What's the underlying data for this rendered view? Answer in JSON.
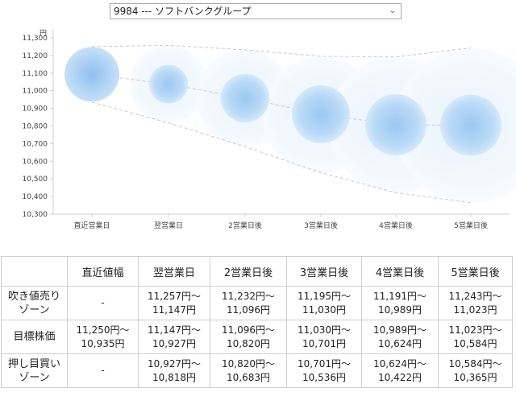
{
  "selector": {
    "value": "9984 --- ソフトバンクグループ"
  },
  "chart_data": {
    "type": "scatter",
    "unit_label": "円",
    "ylim": [
      10300,
      11350
    ],
    "yticks": [
      "10,300",
      "10,400",
      "10,500",
      "10,600",
      "10,700",
      "10,800",
      "10,900",
      "11,000",
      "11,100",
      "11,200",
      "11,300"
    ],
    "ytick_values": [
      10300,
      10400,
      10500,
      10600,
      10700,
      10800,
      10900,
      11000,
      11100,
      11200,
      11300
    ],
    "categories": [
      "直近営業日",
      "翌営業日",
      "2営業日後",
      "3営業日後",
      "4営業日後",
      "5営業日後"
    ],
    "centers": [
      11093,
      11037,
      10958,
      10866,
      10807,
      10804
    ],
    "upper_band": [
      11250,
      11257,
      11232,
      11195,
      11191,
      11243
    ],
    "lower_band": [
      10935,
      10818,
      10683,
      10536,
      10422,
      10365
    ],
    "inner_upper": [
      11250,
      11147,
      11096,
      11030,
      10989,
      11023
    ],
    "inner_lower": [
      10935,
      10927,
      10820,
      10701,
      10624,
      10584
    ]
  },
  "table": {
    "headers": [
      "",
      "直近値幅",
      "翌営業日",
      "2営業日後",
      "3営業日後",
      "4営業日後",
      "5営業日後"
    ],
    "rows": [
      {
        "label_1": "吹き値売り",
        "label_2": "ゾーン",
        "cells": [
          {
            "a": "-",
            "b": ""
          },
          {
            "a": "11,257円〜",
            "b": "11,147円"
          },
          {
            "a": "11,232円〜",
            "b": "11,096円"
          },
          {
            "a": "11,195円〜",
            "b": "11,030円"
          },
          {
            "a": "11,191円〜",
            "b": "10,989円"
          },
          {
            "a": "11,243円〜",
            "b": "11,023円"
          }
        ]
      },
      {
        "label_1": "目標株価",
        "label_2": "",
        "cells": [
          {
            "a": "11,250円〜",
            "b": "10,935円"
          },
          {
            "a": "11,147円〜",
            "b": "10,927円"
          },
          {
            "a": "11,096円〜",
            "b": "10,820円"
          },
          {
            "a": "11,030円〜",
            "b": "10,701円"
          },
          {
            "a": "10,989円〜",
            "b": "10,624円"
          },
          {
            "a": "11,023円〜",
            "b": "10,584円"
          }
        ]
      },
      {
        "label_1": "押し目買い",
        "label_2": "ゾーン",
        "cells": [
          {
            "a": "-",
            "b": ""
          },
          {
            "a": "10,927円〜",
            "b": "10,818円"
          },
          {
            "a": "10,820円〜",
            "b": "10,683円"
          },
          {
            "a": "10,701円〜",
            "b": "10,536円"
          },
          {
            "a": "10,624円〜",
            "b": "10,422円"
          },
          {
            "a": "10,584円〜",
            "b": "10,365円"
          }
        ]
      }
    ]
  }
}
